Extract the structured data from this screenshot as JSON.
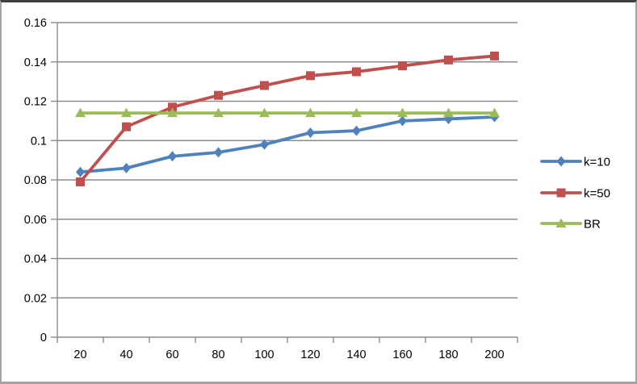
{
  "chart_data": {
    "type": "line",
    "x_tick_labels": [
      "20",
      "40",
      "60",
      "80",
      "100",
      "120",
      "140",
      "160",
      "180",
      "200"
    ],
    "categories": [
      20,
      40,
      60,
      80,
      100,
      120,
      140,
      160,
      180,
      200
    ],
    "y_axis": {
      "min": 0,
      "max": 0.16,
      "tick_interval": 0.02,
      "tick_labels_top_to_bottom": [
        "0.16",
        "0.14",
        "0.12",
        "0.1",
        "0.08",
        "0.06",
        "0.04",
        "0.02",
        "0"
      ]
    },
    "grid": "horizontal",
    "legend_position": "right",
    "series": [
      {
        "name": "k=10",
        "marker": "diamond",
        "color": "#4F81BD",
        "values": [
          0.084,
          0.086,
          0.092,
          0.094,
          0.098,
          0.104,
          0.105,
          0.11,
          0.111,
          0.112
        ]
      },
      {
        "name": "k=50",
        "marker": "square",
        "color": "#C0504D",
        "values": [
          0.079,
          0.107,
          0.117,
          0.123,
          0.128,
          0.133,
          0.135,
          0.138,
          0.141,
          0.143
        ]
      },
      {
        "name": "BR",
        "marker": "triangle",
        "color": "#9BBB59",
        "values": [
          0.114,
          0.114,
          0.114,
          0.114,
          0.114,
          0.114,
          0.114,
          0.114,
          0.114,
          0.114
        ]
      }
    ],
    "colors": {
      "gridline": "#8c8c8c",
      "axis": "#8c8c8c",
      "tick_text": "#000000",
      "background": "#ffffff"
    }
  }
}
